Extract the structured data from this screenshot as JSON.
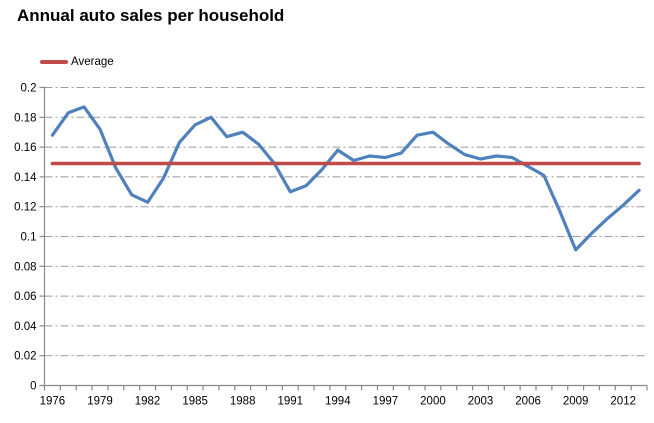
{
  "title": "Annual auto sales per household",
  "legend": {
    "items": [
      {
        "label": "Average",
        "color": "#be4b48"
      }
    ]
  },
  "chart_data": {
    "type": "line",
    "title": "Annual auto sales per household",
    "xlabel": "",
    "ylabel": "",
    "x": [
      1976,
      1977,
      1978,
      1979,
      1980,
      1981,
      1982,
      1983,
      1984,
      1985,
      1986,
      1987,
      1988,
      1989,
      1990,
      1991,
      1992,
      1993,
      1994,
      1995,
      1996,
      1997,
      1998,
      1999,
      2000,
      2001,
      2002,
      2003,
      2004,
      2005,
      2006,
      2007,
      2008,
      2009,
      2010,
      2011,
      2012,
      2013
    ],
    "series": [
      {
        "name": "Annual auto sales per household",
        "color": "#4f81bd",
        "values": [
          0.168,
          0.183,
          0.187,
          0.172,
          0.146,
          0.128,
          0.123,
          0.139,
          0.163,
          0.175,
          0.18,
          0.167,
          0.17,
          0.162,
          0.149,
          0.13,
          0.134,
          0.145,
          0.158,
          0.151,
          0.154,
          0.153,
          0.156,
          0.168,
          0.17,
          0.162,
          0.155,
          0.152,
          0.154,
          0.153,
          0.147,
          0.141,
          0.117,
          0.091,
          0.102,
          0.112,
          0.121,
          0.131
        ]
      },
      {
        "name": "Average",
        "color": "#be4b48",
        "constant": 0.149
      }
    ],
    "ylim": [
      0,
      0.2
    ],
    "ytick_step": 0.02,
    "ytick_labels": [
      "0",
      "0.02",
      "0.04",
      "0.06",
      "0.08",
      "0.1",
      "0.12",
      "0.14",
      "0.16",
      "0.18",
      "0.2"
    ],
    "xtick_labels": [
      "1976",
      "1979",
      "1982",
      "1985",
      "1988",
      "1991",
      "1994",
      "1997",
      "2000",
      "2003",
      "2006",
      "2009",
      "2012"
    ],
    "grid": "horizontal-dash-dot",
    "gridline_color": "#9b9b9b",
    "axis_color": "#898989",
    "legend_position": "top-left"
  }
}
